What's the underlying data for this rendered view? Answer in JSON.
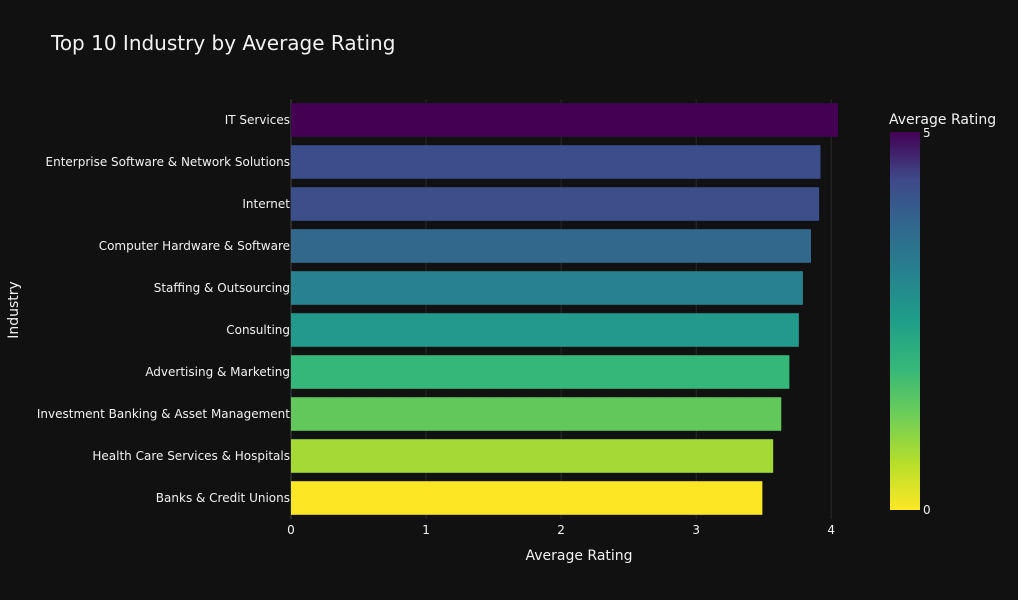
{
  "chart_data": {
    "type": "bar",
    "orientation": "horizontal",
    "title": "Top 10 Industry by Average Rating",
    "xlabel": "Average Rating",
    "ylabel": "Industry",
    "xlim": [
      0,
      4.05
    ],
    "xticks": [
      0,
      1,
      2,
      3,
      4
    ],
    "grid": true,
    "categories": [
      "IT Services",
      "Enterprise Software & Network Solutions",
      "Internet",
      "Computer Hardware & Software",
      "Staffing & Outsourcing",
      "Consulting",
      "Advertising & Marketing",
      "Investment Banking & Asset Management",
      "Health Care Services & Hospitals",
      "Banks & Credit Unions"
    ],
    "values": [
      4.05,
      3.92,
      3.91,
      3.85,
      3.79,
      3.76,
      3.69,
      3.63,
      3.57,
      3.49
    ],
    "colorbar": {
      "title": "Average Rating",
      "min": 0,
      "max": 5,
      "tick_min_label": "0",
      "tick_max_label": "5",
      "colorscale": "viridis-reversed"
    },
    "colors": [
      "#440154",
      "#3b4d8a",
      "#3c4f8a",
      "#33688d",
      "#28818e",
      "#219a8b",
      "#35b779",
      "#63c85b",
      "#a5da36",
      "#fde725"
    ]
  }
}
